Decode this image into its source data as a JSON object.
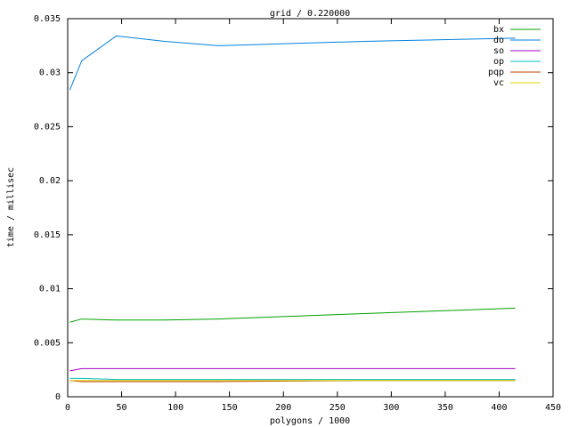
{
  "chart_data": {
    "type": "line",
    "title": "grid / 0.220000",
    "xlabel": "polygons / 1000",
    "ylabel": "time / millisec",
    "x": [
      2,
      13,
      45,
      90,
      140,
      275,
      415
    ],
    "series": [
      {
        "name": "bx",
        "color": "#00a000",
        "values": [
          0.0069,
          0.0072,
          0.0071,
          0.0071,
          0.0072,
          0.0077,
          0.0082
        ]
      },
      {
        "name": "do",
        "color": "#0080e0",
        "values": [
          0.0284,
          0.0311,
          0.0334,
          0.0329,
          0.0325,
          0.0329,
          0.0332
        ]
      },
      {
        "name": "so",
        "color": "#a000c0",
        "values": [
          0.0024,
          0.0026,
          0.0026,
          0.0026,
          0.0026,
          0.0026,
          0.0026
        ]
      },
      {
        "name": "op",
        "color": "#00c0c0",
        "values": [
          0.0017,
          0.0017,
          0.0016,
          0.0016,
          0.0016,
          0.0016,
          0.0016
        ]
      },
      {
        "name": "pqp",
        "color": "#c04000",
        "values": [
          0.0015,
          0.0014,
          0.0014,
          0.0014,
          0.0014,
          0.0015,
          0.0015
        ]
      },
      {
        "name": "vc",
        "color": "#e0d000",
        "values": [
          0.0015,
          0.0015,
          0.0015,
          0.0015,
          0.0015,
          0.0015,
          0.0015
        ]
      }
    ],
    "xlim": [
      0,
      450
    ],
    "xticks": [
      0,
      50,
      100,
      150,
      200,
      250,
      300,
      350,
      400,
      450
    ],
    "ylim": [
      0,
      0.035
    ],
    "yticks": [
      0,
      0.005,
      0.01,
      0.015,
      0.02,
      0.025,
      0.03,
      0.035
    ],
    "legend": "top-right",
    "grid": false
  }
}
